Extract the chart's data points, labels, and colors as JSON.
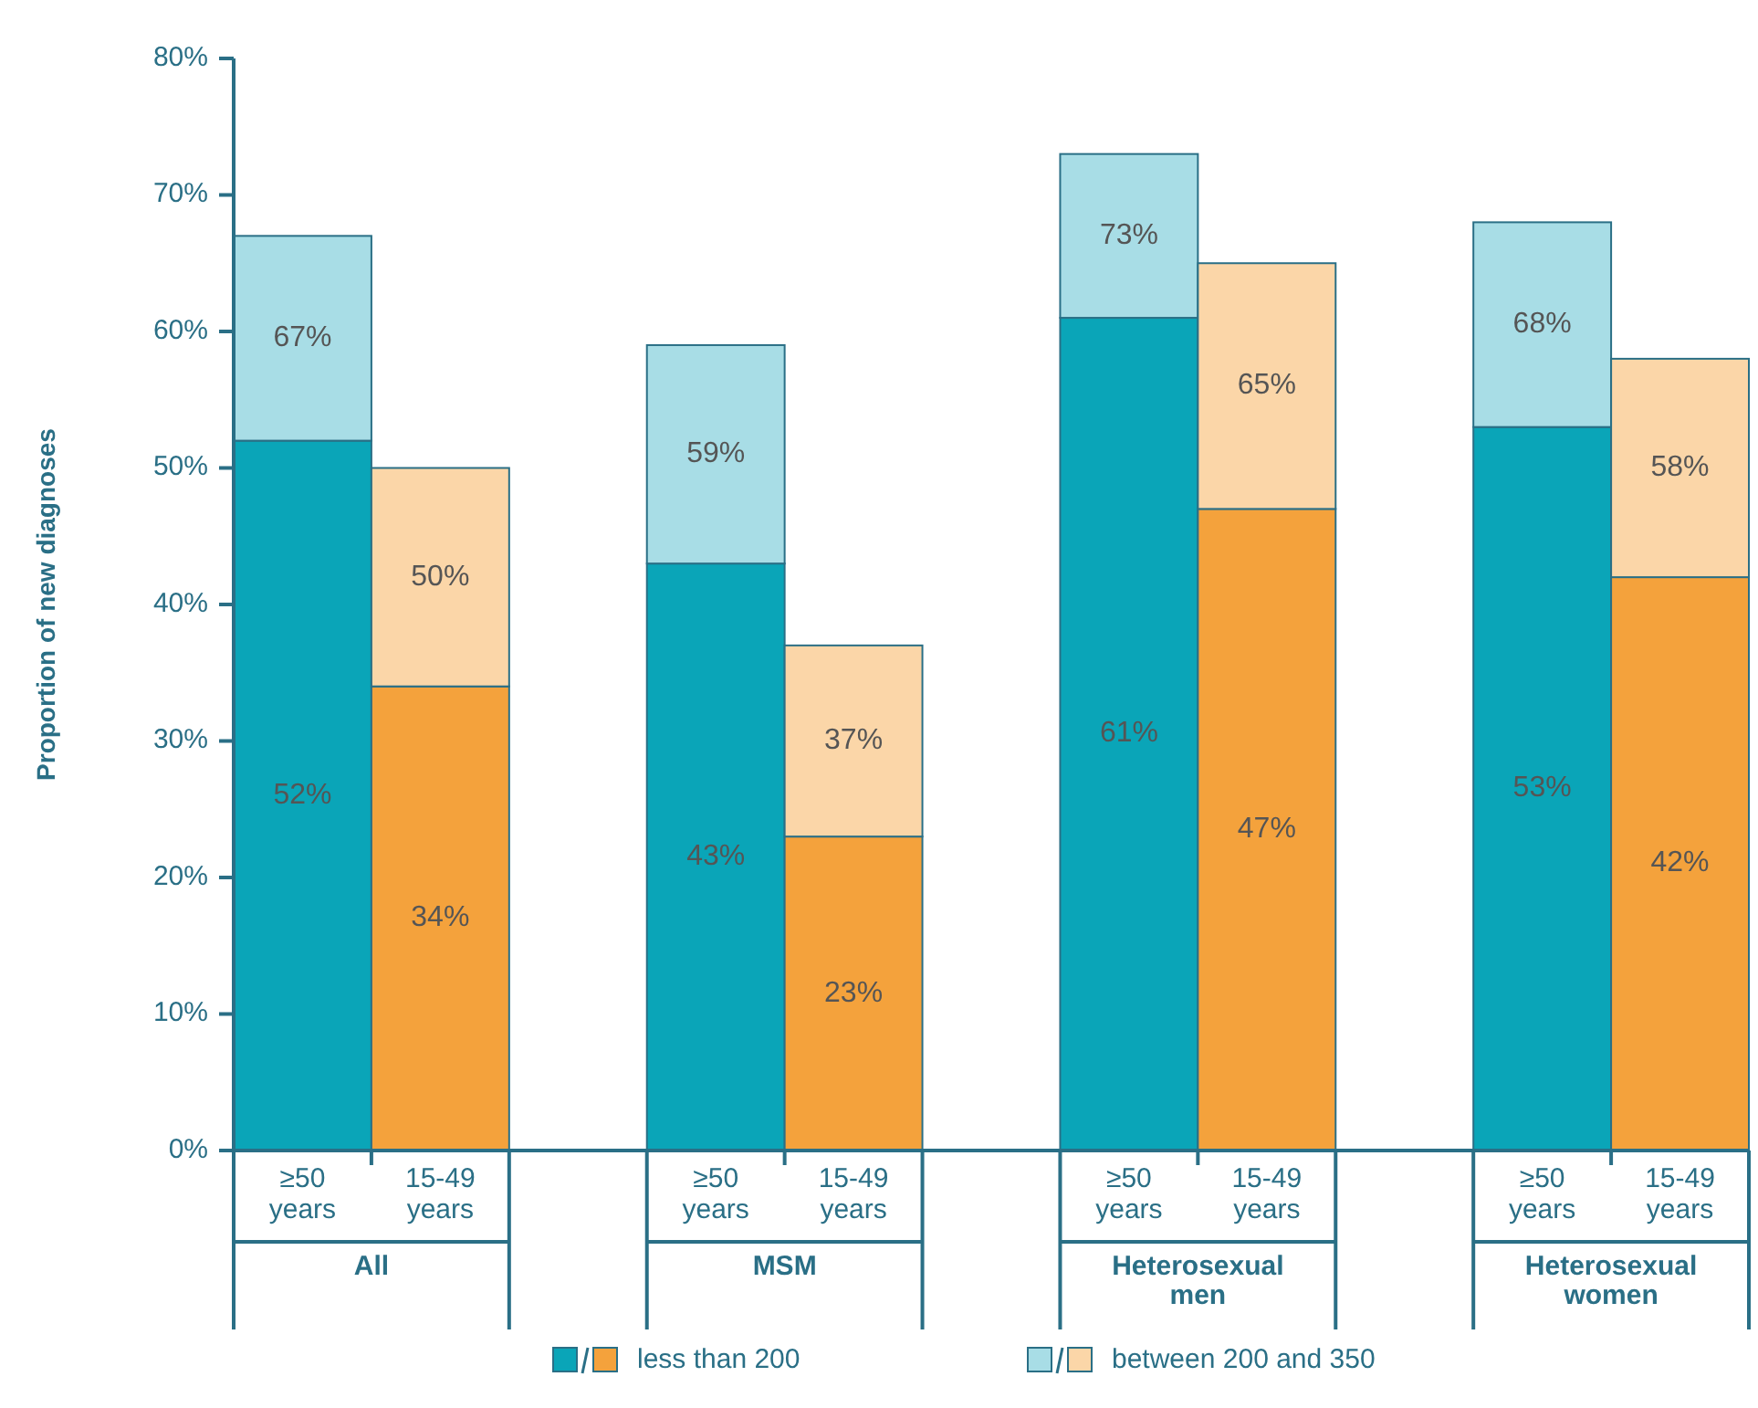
{
  "chart_data": {
    "type": "bar",
    "stacked": true,
    "totals": [
      "67%",
      "50%",
      "59%",
      "37%",
      "73%",
      "65%",
      "68%",
      "58%"
    ],
    "ylabel": "Proportion of new diagnoses",
    "categories": [
      "≥50 years",
      "15-49 years",
      "≥50 years",
      "15-49 years",
      "≥50 years",
      "15-49 years",
      "≥50 years",
      "15-49 years"
    ],
    "annotations": [
      "All",
      "MSM",
      "Heterosexual men",
      "Heterosexual women"
    ],
    "series": [
      {
        "name": "less than 200",
        "colors": [
          "#0aa5b8",
          "#f4a23c",
          "#0aa5b8",
          "#f4a23c",
          "#0aa5b8",
          "#f4a23c",
          "#0aa5b8",
          "#f4a23c"
        ],
        "values": [
          52,
          34,
          43,
          23,
          61,
          47,
          53,
          42
        ],
        "value_labels": [
          "52%",
          "34%",
          "43%",
          "23%",
          "61%",
          "47%",
          "53%",
          "42%"
        ]
      },
      {
        "name": "between 200 and 350",
        "colors": [
          "#a8dde6",
          "#fbd6a8",
          "#a8dde6",
          "#fbd6a8",
          "#a8dde6",
          "#fbd6a8",
          "#a8dde6",
          "#fbd6a8"
        ],
        "values": [
          15,
          16,
          16,
          14,
          12,
          18,
          15,
          16
        ]
      }
    ],
    "ylim": [
      0,
      80
    ],
    "yticks": [
      {
        "value": 0,
        "label": "0%"
      },
      {
        "value": 10,
        "label": "10%"
      },
      {
        "value": 20,
        "label": "20%"
      },
      {
        "value": 30,
        "label": "30%"
      },
      {
        "value": 40,
        "label": "40%"
      },
      {
        "value": 50,
        "label": "50%"
      },
      {
        "value": 60,
        "label": "60%"
      },
      {
        "value": 70,
        "label": "70%"
      },
      {
        "value": 80,
        "label": "80%"
      }
    ],
    "grid": false,
    "legend": "bottom"
  }
}
